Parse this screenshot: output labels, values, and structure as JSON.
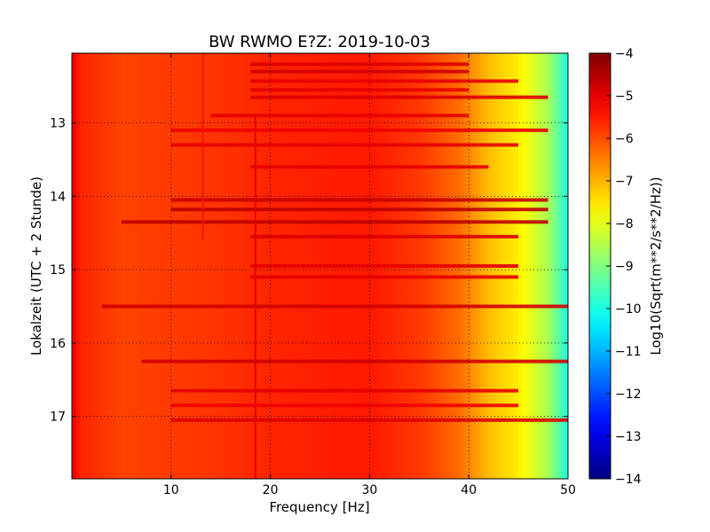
{
  "chart_data": {
    "type": "heatmap",
    "title": "BW RWMO E?Z: 2019-10-03",
    "xlabel": "Frequency [Hz]",
    "ylabel": "Lokalzeit (UTC + 2 Stunde)",
    "colorbar_label": "Log10(Sqrt(m**2/s**2/Hz))",
    "xlim": [
      0,
      50
    ],
    "ylim": [
      17.85,
      12.05
    ],
    "x_ticks": [
      10,
      20,
      30,
      40,
      50
    ],
    "y_ticks": [
      13,
      14,
      15,
      16,
      17
    ],
    "colorbar_range": [
      -14,
      -4
    ],
    "colorbar_ticks": [
      -4,
      -5,
      -6,
      -7,
      -8,
      -9,
      -10,
      -11,
      -12,
      -13,
      -14
    ],
    "colormap": "jet",
    "grid": "dotted",
    "frequency_levels": [
      {
        "f": 0.0,
        "v": -5.0
      },
      {
        "f": 0.8,
        "v": -5.6
      },
      {
        "f": 5.0,
        "v": -5.9
      },
      {
        "f": 15.0,
        "v": -5.75
      },
      {
        "f": 20.0,
        "v": -5.6
      },
      {
        "f": 30.0,
        "v": -5.5
      },
      {
        "f": 35.0,
        "v": -5.8
      },
      {
        "f": 39.0,
        "v": -6.3
      },
      {
        "f": 42.0,
        "v": -7.1
      },
      {
        "f": 45.0,
        "v": -7.6
      },
      {
        "f": 48.0,
        "v": -8.6
      },
      {
        "f": 50.0,
        "v": -10.0
      }
    ],
    "line_features": [
      {
        "f": 18.5,
        "t_start": 12.9,
        "t_end": 17.85,
        "v": -5.0
      },
      {
        "f": 13.2,
        "t_start": 12.05,
        "t_end": 14.6,
        "v": -5.4
      }
    ],
    "bands": [
      {
        "t": 12.2,
        "f_start": 18,
        "f_end": 40,
        "v": -4.9
      },
      {
        "t": 12.3,
        "f_start": 18,
        "f_end": 40,
        "v": -4.8
      },
      {
        "t": 12.43,
        "f_start": 18,
        "f_end": 45,
        "v": -5.0
      },
      {
        "t": 12.55,
        "f_start": 18,
        "f_end": 40,
        "v": -5.0
      },
      {
        "t": 12.65,
        "f_start": 18,
        "f_end": 48,
        "v": -4.9
      },
      {
        "t": 12.9,
        "f_start": 14,
        "f_end": 40,
        "v": -5.0
      },
      {
        "t": 13.1,
        "f_start": 10,
        "f_end": 48,
        "v": -5.1
      },
      {
        "t": 13.3,
        "f_start": 10,
        "f_end": 45,
        "v": -5.0
      },
      {
        "t": 13.6,
        "f_start": 18,
        "f_end": 42,
        "v": -5.0
      },
      {
        "t": 14.05,
        "f_start": 10,
        "f_end": 48,
        "v": -4.7
      },
      {
        "t": 14.18,
        "f_start": 10,
        "f_end": 48,
        "v": -4.6
      },
      {
        "t": 14.35,
        "f_start": 5,
        "f_end": 48,
        "v": -4.6
      },
      {
        "t": 14.55,
        "f_start": 18,
        "f_end": 45,
        "v": -4.9
      },
      {
        "t": 14.95,
        "f_start": 18,
        "f_end": 45,
        "v": -5.0
      },
      {
        "t": 15.1,
        "f_start": 18,
        "f_end": 45,
        "v": -5.0
      },
      {
        "t": 15.5,
        "f_start": 3,
        "f_end": 50,
        "v": -4.8
      },
      {
        "t": 16.25,
        "f_start": 7,
        "f_end": 50,
        "v": -4.8
      },
      {
        "t": 16.65,
        "f_start": 10,
        "f_end": 45,
        "v": -5.0
      },
      {
        "t": 16.85,
        "f_start": 10,
        "f_end": 45,
        "v": -5.1
      },
      {
        "t": 17.05,
        "f_start": 10,
        "f_end": 50,
        "v": -4.9
      }
    ]
  }
}
